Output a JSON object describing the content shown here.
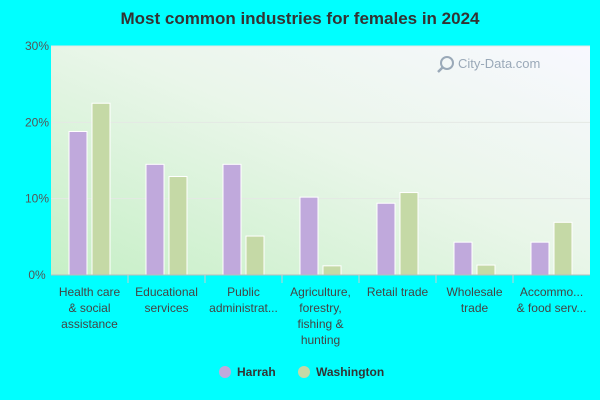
{
  "chart_data": {
    "type": "bar",
    "title": "Most common industries for females in 2024",
    "xlabel": "",
    "ylabel": "",
    "ylim": [
      0,
      30
    ],
    "yticks": [
      0,
      10,
      20,
      30
    ],
    "ytick_labels": [
      "0%",
      "10%",
      "20%",
      "30%"
    ],
    "categories": [
      [
        "Health care",
        "& social",
        "assistance"
      ],
      [
        "Educational",
        "services"
      ],
      [
        "Public",
        "administrat..."
      ],
      [
        "Agriculture,",
        "forestry,",
        "fishing &",
        "hunting"
      ],
      [
        "Retail trade"
      ],
      [
        "Wholesale",
        "trade"
      ],
      [
        "Accommo...",
        "& food serv..."
      ]
    ],
    "series": [
      {
        "name": "Harrah",
        "color": "#c0a9dc",
        "values": [
          18.8,
          14.5,
          14.5,
          10.2,
          9.4,
          4.3,
          4.3
        ]
      },
      {
        "name": "Washington",
        "color": "#c5d9a6",
        "values": [
          22.5,
          12.9,
          5.1,
          1.2,
          10.8,
          1.3,
          6.9
        ]
      }
    ],
    "grid": true,
    "legend_position": "bottom-center"
  },
  "watermark": {
    "text": "City-Data.com",
    "icon": "magnifier-icon"
  }
}
